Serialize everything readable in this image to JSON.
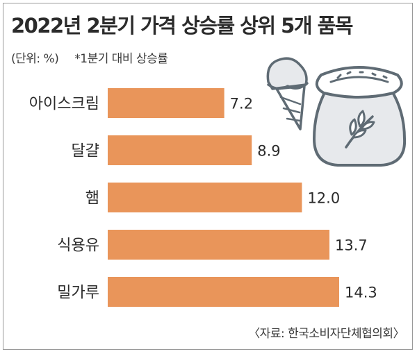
{
  "header": {
    "title": "2022년 2분기 가격 상승률 상위 5개 품목",
    "unit": "(단위: %)",
    "note": "*1분기 대비 상승률"
  },
  "footer": {
    "source": "〈자료: 한국소비자단체협의회〉"
  },
  "colors": {
    "bar": "#e9955a",
    "illustration_stroke": "#5f6b74",
    "illustration_fill": "#e7e9ec"
  },
  "icons": [
    "ice-cream-cone-icon",
    "grain-sack-icon"
  ],
  "chart_data": {
    "type": "bar",
    "orientation": "horizontal",
    "categories": [
      "아이스크림",
      "달걀",
      "햄",
      "식용유",
      "밀가루"
    ],
    "values": [
      7.2,
      8.9,
      12.0,
      13.7,
      14.3
    ],
    "value_labels": [
      "7.2",
      "8.9",
      "12.0",
      "13.7",
      "14.3"
    ],
    "title": "2022년 2분기 가격 상승률 상위 5개 품목",
    "xlabel": "",
    "ylabel": "",
    "xlim": [
      0,
      14.3
    ],
    "grid": false,
    "legend": "none"
  }
}
